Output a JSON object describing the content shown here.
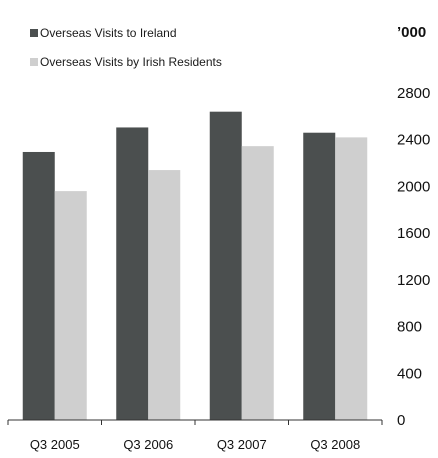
{
  "chart_data": {
    "type": "bar",
    "title": "",
    "xlabel": "",
    "ylabel": "",
    "unit_label": "’000",
    "categories": [
      "Q3 2005",
      "Q3 2006",
      "Q3 2007",
      "Q3 2008"
    ],
    "series": [
      {
        "name": "Overseas Visits to Ireland",
        "color": "#4b4f4f",
        "values": [
          2295,
          2505,
          2640,
          2460
        ]
      },
      {
        "name": "Overseas Visits by Irish Residents",
        "color": "#cfcfcf",
        "values": [
          1960,
          2140,
          2345,
          2420
        ]
      }
    ],
    "ylim": [
      0,
      2800
    ],
    "yticks": [
      "2800",
      "2400",
      "2000",
      "1600",
      "1200",
      "800",
      "400",
      "0"
    ],
    "grid": false,
    "legend_position": "top-left",
    "axis_side": "right"
  }
}
